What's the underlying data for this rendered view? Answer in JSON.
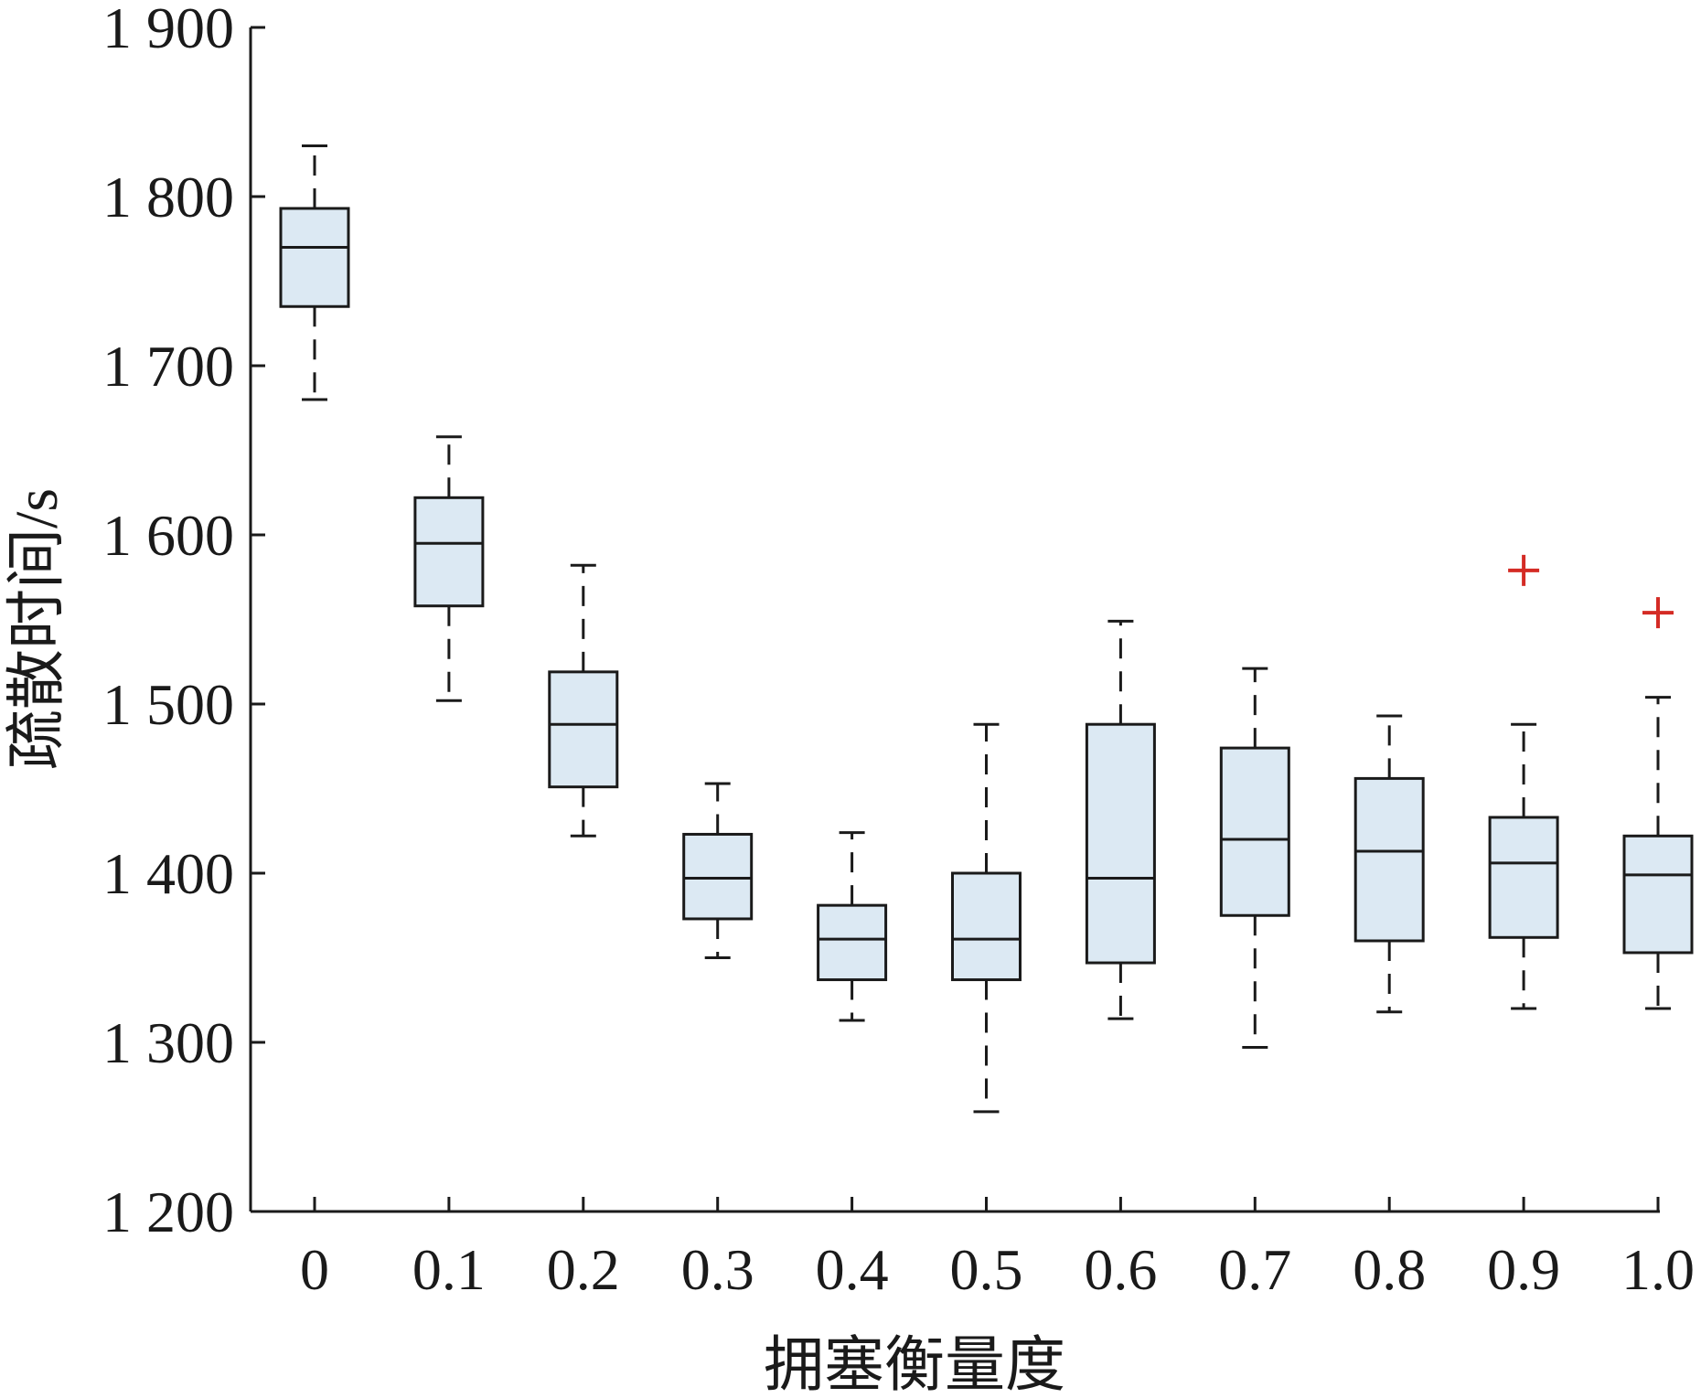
{
  "chart_data": {
    "type": "box",
    "title": "",
    "xlabel": "拥塞衡量度",
    "ylabel": "疏散时间/s",
    "categories": [
      "0",
      "0.1",
      "0.2",
      "0.3",
      "0.4",
      "0.5",
      "0.6",
      "0.7",
      "0.8",
      "0.9",
      "1.0"
    ],
    "ylim": [
      1200,
      1900
    ],
    "yticks": [
      1200,
      1300,
      1400,
      1500,
      1600,
      1700,
      1800,
      1900
    ],
    "ytick_labels": [
      "1 200",
      "1 300",
      "1 400",
      "1 500",
      "1 600",
      "1 700",
      "1 800",
      "1 900"
    ],
    "boxes": [
      {
        "category": "0",
        "whisker_low": 1680,
        "q1": 1735,
        "median": 1770,
        "q3": 1793,
        "whisker_high": 1830,
        "outliers": []
      },
      {
        "category": "0.1",
        "whisker_low": 1502,
        "q1": 1558,
        "median": 1595,
        "q3": 1622,
        "whisker_high": 1658,
        "outliers": []
      },
      {
        "category": "0.2",
        "whisker_low": 1422,
        "q1": 1451,
        "median": 1488,
        "q3": 1519,
        "whisker_high": 1582,
        "outliers": []
      },
      {
        "category": "0.3",
        "whisker_low": 1350,
        "q1": 1373,
        "median": 1397,
        "q3": 1423,
        "whisker_high": 1453,
        "outliers": []
      },
      {
        "category": "0.4",
        "whisker_low": 1313,
        "q1": 1337,
        "median": 1361,
        "q3": 1381,
        "whisker_high": 1424,
        "outliers": []
      },
      {
        "category": "0.5",
        "whisker_low": 1259,
        "q1": 1337,
        "median": 1361,
        "q3": 1400,
        "whisker_high": 1488,
        "outliers": []
      },
      {
        "category": "0.6",
        "whisker_low": 1314,
        "q1": 1347,
        "median": 1397,
        "q3": 1488,
        "whisker_high": 1549,
        "outliers": []
      },
      {
        "category": "0.7",
        "whisker_low": 1297,
        "q1": 1375,
        "median": 1420,
        "q3": 1474,
        "whisker_high": 1521,
        "outliers": []
      },
      {
        "category": "0.8",
        "whisker_low": 1318,
        "q1": 1360,
        "median": 1413,
        "q3": 1456,
        "whisker_high": 1493,
        "outliers": []
      },
      {
        "category": "0.9",
        "whisker_low": 1320,
        "q1": 1362,
        "median": 1406,
        "q3": 1433,
        "whisker_high": 1488,
        "outliers": [
          1579
        ]
      },
      {
        "category": "1.0",
        "whisker_low": 1320,
        "q1": 1353,
        "median": 1399,
        "q3": 1422,
        "whisker_high": 1504,
        "outliers": [
          1554
        ]
      }
    ],
    "grid": false,
    "legend": "none",
    "colors": {
      "box_fill": "#dce9f3",
      "box_stroke": "#1a1a1a",
      "outlier": "#d42b25",
      "axis": "#1a1a1a"
    }
  }
}
